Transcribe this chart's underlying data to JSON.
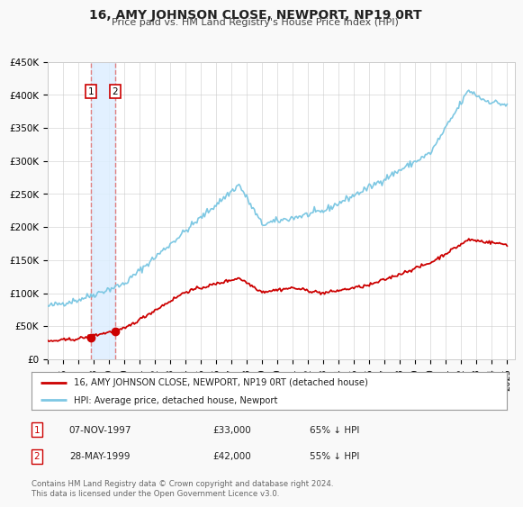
{
  "title": "16, AMY JOHNSON CLOSE, NEWPORT, NP19 0RT",
  "subtitle": "Price paid vs. HM Land Registry's House Price Index (HPI)",
  "xlim": [
    1995.0,
    2025.5
  ],
  "ylim": [
    0,
    450000
  ],
  "yticks": [
    0,
    50000,
    100000,
    150000,
    200000,
    250000,
    300000,
    350000,
    400000,
    450000
  ],
  "ytick_labels": [
    "£0",
    "£50K",
    "£100K",
    "£150K",
    "£200K",
    "£250K",
    "£300K",
    "£350K",
    "£400K",
    "£450K"
  ],
  "xticks": [
    1995,
    1996,
    1997,
    1998,
    1999,
    2000,
    2001,
    2002,
    2003,
    2004,
    2005,
    2006,
    2007,
    2008,
    2009,
    2010,
    2011,
    2012,
    2013,
    2014,
    2015,
    2016,
    2017,
    2018,
    2019,
    2020,
    2021,
    2022,
    2023,
    2024,
    2025
  ],
  "hpi_color": "#7ec8e3",
  "price_color": "#cc0000",
  "marker_color": "#cc0000",
  "vline_color": "#e08080",
  "shade_color": "#ddeeff",
  "transaction1_x": 1997.854,
  "transaction1_y": 33000,
  "transaction2_x": 1999.411,
  "transaction2_y": 42000,
  "legend_label1": "16, AMY JOHNSON CLOSE, NEWPORT, NP19 0RT (detached house)",
  "legend_label2": "HPI: Average price, detached house, Newport",
  "table_row1": [
    "1",
    "07-NOV-1997",
    "£33,000",
    "65% ↓ HPI"
  ],
  "table_row2": [
    "2",
    "28-MAY-1999",
    "£42,000",
    "55% ↓ HPI"
  ],
  "footnote1": "Contains HM Land Registry data © Crown copyright and database right 2024.",
  "footnote2": "This data is licensed under the Open Government Licence v3.0.",
  "background_color": "#f9f9f9",
  "plot_bg_color": "#ffffff"
}
